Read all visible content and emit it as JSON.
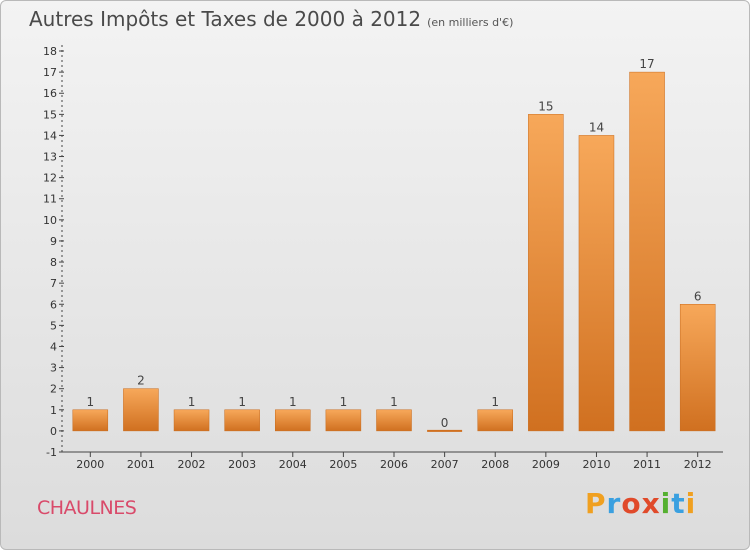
{
  "title": "Autres Impôts et Taxes de 2000 à 2012",
  "subtitle": "(en milliers d'€)",
  "place": "CHAULNES",
  "logo": {
    "letters": [
      "P",
      "r",
      "o",
      "x",
      "i",
      "t",
      "i"
    ],
    "colors": [
      "#f0a020",
      "#3aa0e0",
      "#e04a2a",
      "#e04a2a",
      "#55b030",
      "#3aa0e0",
      "#f0a020"
    ]
  },
  "colors": {
    "bar_top": "#f7a85a",
    "bar_bottom": "#d07020",
    "axis": "#444444",
    "grid": "#c8c8c8"
  },
  "chart_data": {
    "type": "bar",
    "categories": [
      "2000",
      "2001",
      "2002",
      "2003",
      "2004",
      "2005",
      "2006",
      "2007",
      "2008",
      "2009",
      "2010",
      "2011",
      "2012"
    ],
    "values": [
      1,
      2,
      1,
      1,
      1,
      1,
      1,
      0,
      1,
      15,
      14,
      17,
      6
    ],
    "yticks": [
      -1,
      0,
      1,
      2,
      3,
      4,
      5,
      6,
      7,
      8,
      9,
      10,
      11,
      12,
      13,
      14,
      15,
      16,
      17,
      18
    ],
    "ylim": [
      -1,
      18
    ],
    "grid": false,
    "xlabel": "",
    "ylabel": ""
  }
}
